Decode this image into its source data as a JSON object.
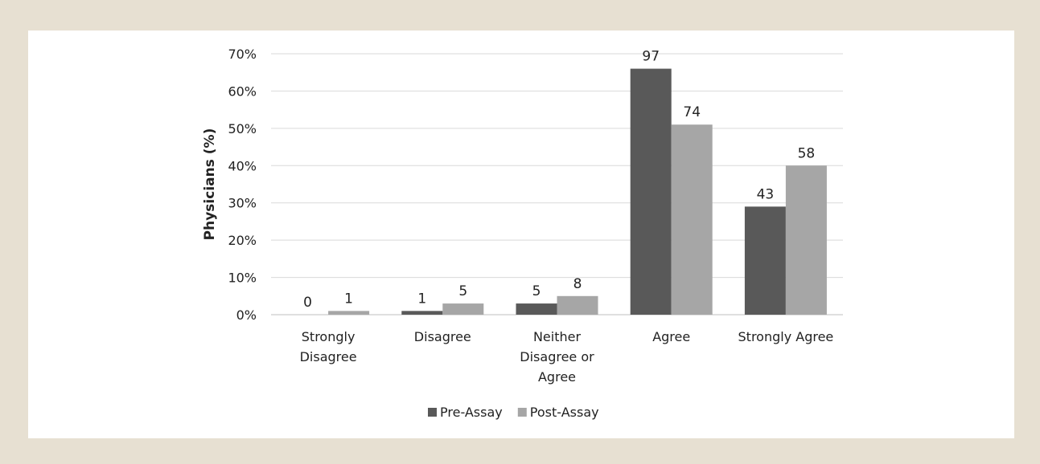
{
  "chart_data": {
    "type": "bar",
    "title": "",
    "xlabel": "",
    "ylabel": "Physicians (%)",
    "ylim": [
      0,
      70
    ],
    "yticks": [
      0,
      10,
      20,
      30,
      40,
      50,
      60,
      70
    ],
    "ytick_format": "percent",
    "grid": "horizontal",
    "legend_position": "bottom",
    "categories": [
      [
        "Strongly",
        "Disagree"
      ],
      [
        "Disagree"
      ],
      [
        "Neither",
        "Disagree or",
        "Agree"
      ],
      [
        "Agree"
      ],
      [
        "Strongly Agree"
      ]
    ],
    "series": [
      {
        "name": "Pre-Assay",
        "color": "#595959",
        "values": [
          0,
          1,
          3,
          66,
          29
        ],
        "labels": [
          "0",
          "1",
          "5",
          "97",
          "43"
        ]
      },
      {
        "name": "Post-Assay",
        "color": "#a6a6a6",
        "values": [
          1,
          3,
          5,
          51,
          40
        ],
        "labels": [
          "1",
          "5",
          "8",
          "74",
          "58"
        ]
      }
    ]
  }
}
